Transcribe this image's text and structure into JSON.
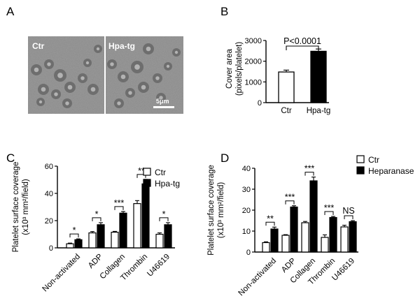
{
  "panel_labels": [
    "A",
    "B",
    "C",
    "D"
  ],
  "micro": {
    "left_label": "Ctr",
    "right_label": "Hpa-tg",
    "scale_label": "5μm"
  },
  "chart_data": [
    {
      "panel": "B",
      "type": "bar",
      "categories": [
        "Ctr",
        "Hpa-tg"
      ],
      "series": [
        {
          "values": [
            1480,
            2480
          ],
          "errors": [
            90,
            110
          ],
          "colors": [
            "#ffffff",
            "#000000"
          ]
        }
      ],
      "ylabel": [
        "Cover area",
        "(pixels/platelet)"
      ],
      "ylim": [
        0,
        3000
      ],
      "yticks": [
        0,
        1000,
        2000,
        3000
      ],
      "annotation": "P<0.0001"
    },
    {
      "panel": "C",
      "type": "bar",
      "categories": [
        "Non-activated",
        "ADP",
        "Collagen",
        "Thrombin",
        "U46619"
      ],
      "series": [
        {
          "name": "Ctr",
          "color": "#ffffff",
          "values": [
            3,
            11,
            11.5,
            32.5,
            10
          ],
          "errors": [
            0.5,
            1,
            0.6,
            2.2,
            1
          ]
        },
        {
          "name": "Hpa-tg",
          "color": "#000000",
          "values": [
            6,
            17,
            25.5,
            47,
            17
          ],
          "errors": [
            0.6,
            1.5,
            1.2,
            3.3,
            1.5
          ]
        }
      ],
      "ylabel": [
        "Platelet surface coverage",
        "(x10³ mm²/field)"
      ],
      "ylim": [
        0,
        60
      ],
      "yticks": [
        0,
        20,
        40,
        60
      ],
      "significance": [
        "*",
        "*",
        "***",
        "**",
        "*"
      ],
      "legend_position": "top-right"
    },
    {
      "panel": "D",
      "type": "bar",
      "categories": [
        "Non-activated",
        "ADP",
        "Collagen",
        "Thrombin",
        "U46619"
      ],
      "series": [
        {
          "name": "Ctr",
          "color": "#ffffff",
          "values": [
            4.5,
            8,
            14,
            7,
            12
          ],
          "errors": [
            0.4,
            0.3,
            0.6,
            1.2,
            0.8
          ]
        },
        {
          "name": "Heparanase",
          "color": "#000000",
          "values": [
            11,
            21.5,
            34,
            16.5,
            14.5
          ],
          "errors": [
            0.9,
            0.6,
            1.8,
            0.5,
            0.5
          ]
        }
      ],
      "ylabel": [
        "Platelet surface coverage",
        "(x10³ mm²/field)"
      ],
      "ylim": [
        0,
        40
      ],
      "yticks": [
        0,
        10,
        20,
        30,
        40
      ],
      "significance": [
        "**",
        "***",
        "***",
        "***",
        "NS"
      ],
      "legend_position": "top-right"
    }
  ]
}
